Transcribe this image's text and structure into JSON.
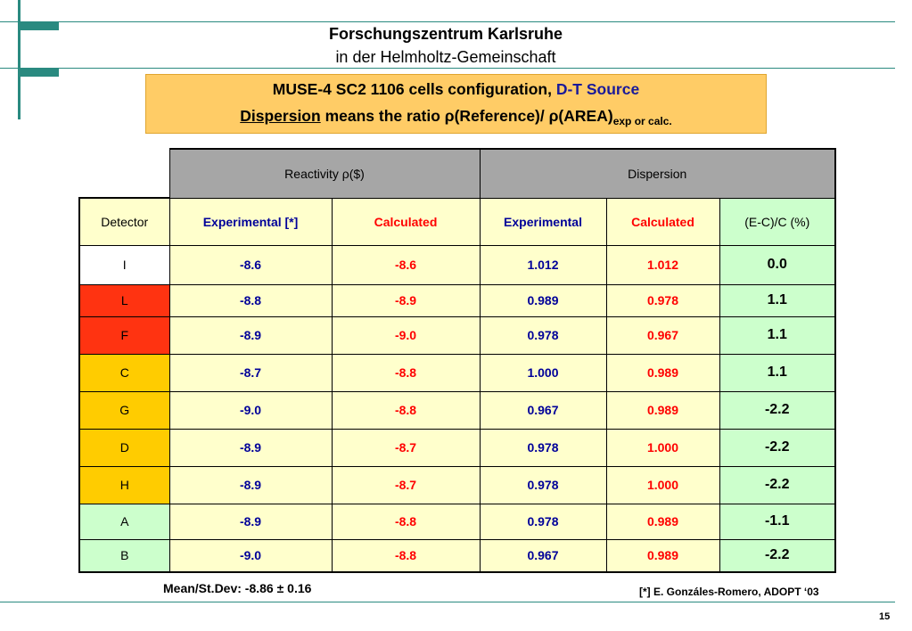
{
  "header": {
    "title_line1": "Forschungszentrum Karlsruhe",
    "title_line2": "in der Helmholtz-Gemeinschaft"
  },
  "banner": {
    "line1_main": "MUSE-4 SC2 1106 cells configuration",
    "line1_sep": ", ",
    "line1_source": "D-T Source",
    "line2_term": "Dispersion",
    "line2_text": " means the ratio ρ(Reference)/ ρ(AREA)",
    "line2_sub": "exp or calc."
  },
  "table": {
    "group_headers": {
      "reactivity": "Reactivity ρ($)",
      "dispersion": "Dispersion"
    },
    "columns": {
      "detector": "Detector",
      "exp_react": "Experimental [*]",
      "calc_react": "Calculated",
      "exp_disp": "Experimental",
      "calc_disp": "Calculated",
      "ec": "(E-C)/C (%)"
    },
    "rows": [
      {
        "detector": "I",
        "exp_react": "-8.6",
        "calc_react": "-8.6",
        "exp_disp": "1.012",
        "calc_disp": "1.012",
        "ec": "0.0"
      },
      {
        "detector": "L",
        "exp_react": "-8.8",
        "calc_react": "-8.9",
        "exp_disp": "0.989",
        "calc_disp": "0.978",
        "ec": "1.1"
      },
      {
        "detector": "F",
        "exp_react": "-8.9",
        "calc_react": "-9.0",
        "exp_disp": "0.978",
        "calc_disp": "0.967",
        "ec": "1.1"
      },
      {
        "detector": "C",
        "exp_react": "-8.7",
        "calc_react": "-8.8",
        "exp_disp": "1.000",
        "calc_disp": "0.989",
        "ec": "1.1"
      },
      {
        "detector": "G",
        "exp_react": "-9.0",
        "calc_react": "-8.8",
        "exp_disp": "0.967",
        "calc_disp": "0.989",
        "ec": "-2.2"
      },
      {
        "detector": "D",
        "exp_react": "-8.9",
        "calc_react": "-8.7",
        "exp_disp": "0.978",
        "calc_disp": "1.000",
        "ec": "-2.2"
      },
      {
        "detector": "H",
        "exp_react": "-8.9",
        "calc_react": "-8.7",
        "exp_disp": "0.978",
        "calc_disp": "1.000",
        "ec": "-2.2"
      },
      {
        "detector": "A",
        "exp_react": "-8.9",
        "calc_react": "-8.8",
        "exp_disp": "0.978",
        "calc_disp": "0.989",
        "ec": "-1.1"
      },
      {
        "detector": "B",
        "exp_react": "-9.0",
        "calc_react": "-8.8",
        "exp_disp": "0.967",
        "calc_disp": "0.989",
        "ec": "-2.2"
      }
    ]
  },
  "footer": {
    "mean": "Mean/St.Dev: -8.86 ± 0.16",
    "reference": "[*] E. Gonzáles-Romero, ADOPT ‘03",
    "page": "15"
  },
  "colors": {
    "accent_teal": "#2a8a80",
    "banner_bg": "#ffcc66",
    "blue_text": "#000099",
    "red_text": "#ff0000",
    "cell_yellow": "#ffffcc",
    "cell_green": "#ccffcc",
    "detector_red": "#ff3311",
    "detector_orange": "#ffcc00",
    "header_grey": "#a6a6a6"
  }
}
